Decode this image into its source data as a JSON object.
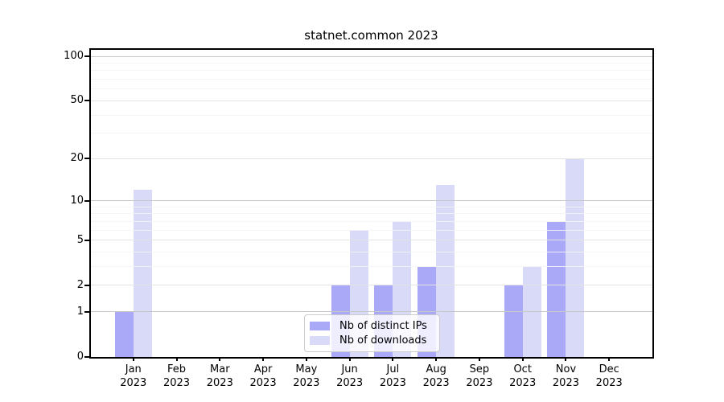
{
  "chart_data": {
    "type": "bar",
    "title": "statnet.common 2023",
    "xlabel": "",
    "ylabel": "",
    "categories": [
      "Jan",
      "Feb",
      "Mar",
      "Apr",
      "May",
      "Jun",
      "Jul",
      "Aug",
      "Sep",
      "Oct",
      "Nov",
      "Dec"
    ],
    "year_label": "2023",
    "series": [
      {
        "name": "Nb of distinct IPs",
        "color": "#a9a9f7",
        "values": [
          1,
          0,
          0,
          0,
          0,
          2,
          2,
          3,
          0,
          2,
          7,
          0
        ]
      },
      {
        "name": "Nb of downloads",
        "color": "#d9d9f8",
        "values": [
          12,
          0,
          0,
          0,
          0,
          6,
          7,
          13,
          0,
          3,
          20,
          0
        ]
      }
    ],
    "yscale": "log1p",
    "ylim": [
      0,
      112
    ],
    "yticks": [
      0,
      1,
      2,
      5,
      10,
      20,
      50,
      100
    ],
    "yticks_emphasized": [
      1,
      10,
      100
    ],
    "yticks_minor": [
      3,
      4,
      6,
      7,
      8,
      9,
      30,
      40,
      60,
      70,
      80,
      90
    ],
    "grid": true,
    "legend_position": "bottom-center",
    "grid_color_emphasized": "#c7c7c7",
    "grid_color_major": "#e3e3e3",
    "grid_color_minor": "#f3f3f3",
    "axis_color": "#000000",
    "background_color": "#ffffff"
  }
}
